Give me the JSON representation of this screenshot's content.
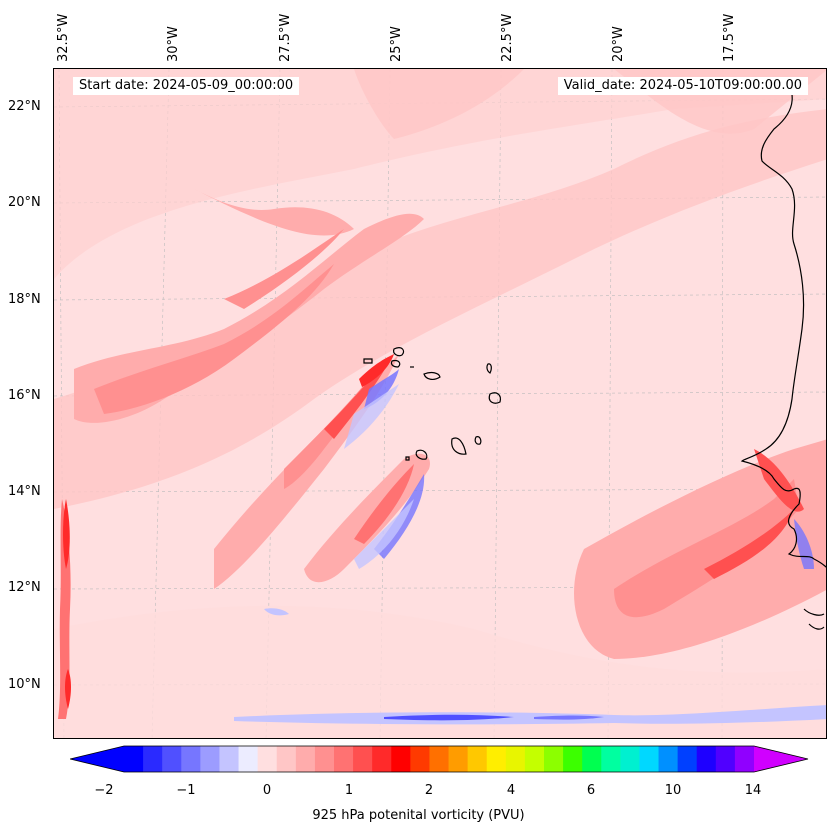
{
  "header": {
    "start_date": "Start date: 2024-05-09_00:00:00",
    "valid_date": "Valid_date: 2024-05-10T09:00:00.00"
  },
  "axes": {
    "lon_labels": [
      "32.5°W",
      "30°W",
      "27.5°W",
      "25°W",
      "22.5°W",
      "20°W",
      "17.5°W"
    ],
    "lat_labels": [
      "22°N",
      "20°N",
      "18°N",
      "16°N",
      "14°N",
      "12°N",
      "10°N"
    ],
    "lon_values": [
      -32.5,
      -30,
      -27.5,
      -25,
      -22.5,
      -20,
      -17.5
    ],
    "lat_values": [
      22,
      20,
      18,
      16,
      14,
      12,
      10
    ]
  },
  "colorbar": {
    "label": "925 hPa potenital vorticity (PVU)",
    "tick_labels": [
      "−2",
      "−1",
      "0",
      "1",
      "2",
      "4",
      "6",
      "10",
      "14"
    ],
    "colors": [
      "#0000ff",
      "#2a2aff",
      "#5050ff",
      "#7676ff",
      "#9c9cff",
      "#c4c4ff",
      "#ececff",
      "#ffdfe0",
      "#ffc6c6",
      "#ffacac",
      "#ff9090",
      "#ff7272",
      "#ff5050",
      "#ff2a2a",
      "#ff0000",
      "#ff3a00",
      "#ff7000",
      "#ff9c00",
      "#ffc800",
      "#ffee00",
      "#e8f500",
      "#c4ff00",
      "#8cff00",
      "#3cff00",
      "#00ff50",
      "#00ffa0",
      "#00f0d0",
      "#00d8ff",
      "#0090ff",
      "#0040ff",
      "#1e00ff",
      "#5000ff",
      "#9000ff"
    ],
    "under_color": "#0000ff",
    "over_color": "#d000ff"
  },
  "map": {
    "background_color": "#ffdfe0"
  }
}
